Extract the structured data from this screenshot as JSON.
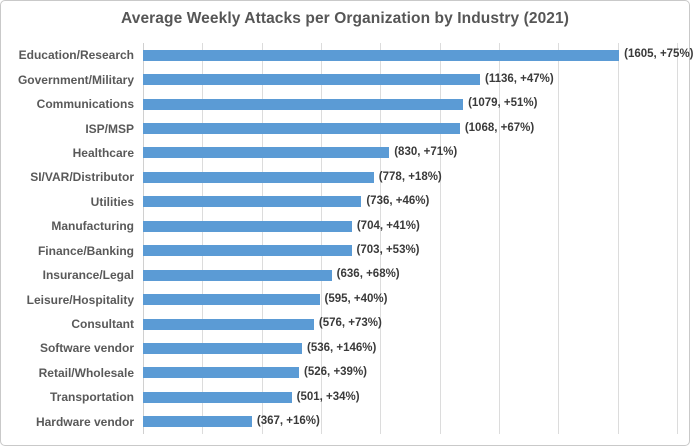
{
  "chart_data": {
    "type": "bar",
    "orientation": "horizontal",
    "title": "Average Weekly Attacks per Organization by Industry (2021)",
    "categories": [
      "Education/Research",
      "Government/Military",
      "Communications",
      "ISP/MSP",
      "Healthcare",
      "SI/VAR/Distributor",
      "Utilities",
      "Manufacturing",
      "Finance/Banking",
      "Insurance/Legal",
      "Leisure/Hospitality",
      "Consultant",
      "Software vendor",
      "Retail/Wholesale",
      "Transportation",
      "Hardware vendor"
    ],
    "values": [
      1605,
      1136,
      1079,
      1068,
      830,
      778,
      736,
      704,
      703,
      636,
      595,
      576,
      536,
      526,
      501,
      367
    ],
    "pct_change": [
      "+75%",
      "+47%",
      "+51%",
      "+67%",
      "+71%",
      "+18%",
      "+46%",
      "+41%",
      "+53%",
      "+68%",
      "+40%",
      "+73%",
      "+146%",
      "+39%",
      "+34%",
      "+16%"
    ],
    "data_labels": [
      "(1605, +75%)",
      "(1136, +47%)",
      "(1079, +51%)",
      "(1068, +67%)",
      "(830, +71%)",
      "(778, +18%)",
      "(736, +46%)",
      "(704, +41%)",
      "(703, +53%)",
      "(636, +68%)",
      "(595, +40%)",
      "(576, +73%)",
      "(536, +146%)",
      "(526, +39%)",
      "(501, +34%)",
      "(367, +16%)"
    ],
    "xlabel": "",
    "ylabel": "",
    "xlim": [
      0,
      1800
    ],
    "gridline_step": 200,
    "grid": true,
    "legend": "none",
    "bar_color": "#5B9BD5"
  },
  "colors": {
    "bar": "#5B9BD5",
    "title": "#565656",
    "category_label": "#595959",
    "data_label": "#3a3a3a",
    "gridline": "#dcdcdc",
    "border": "#c9c9c9",
    "background": "#ffffff"
  }
}
